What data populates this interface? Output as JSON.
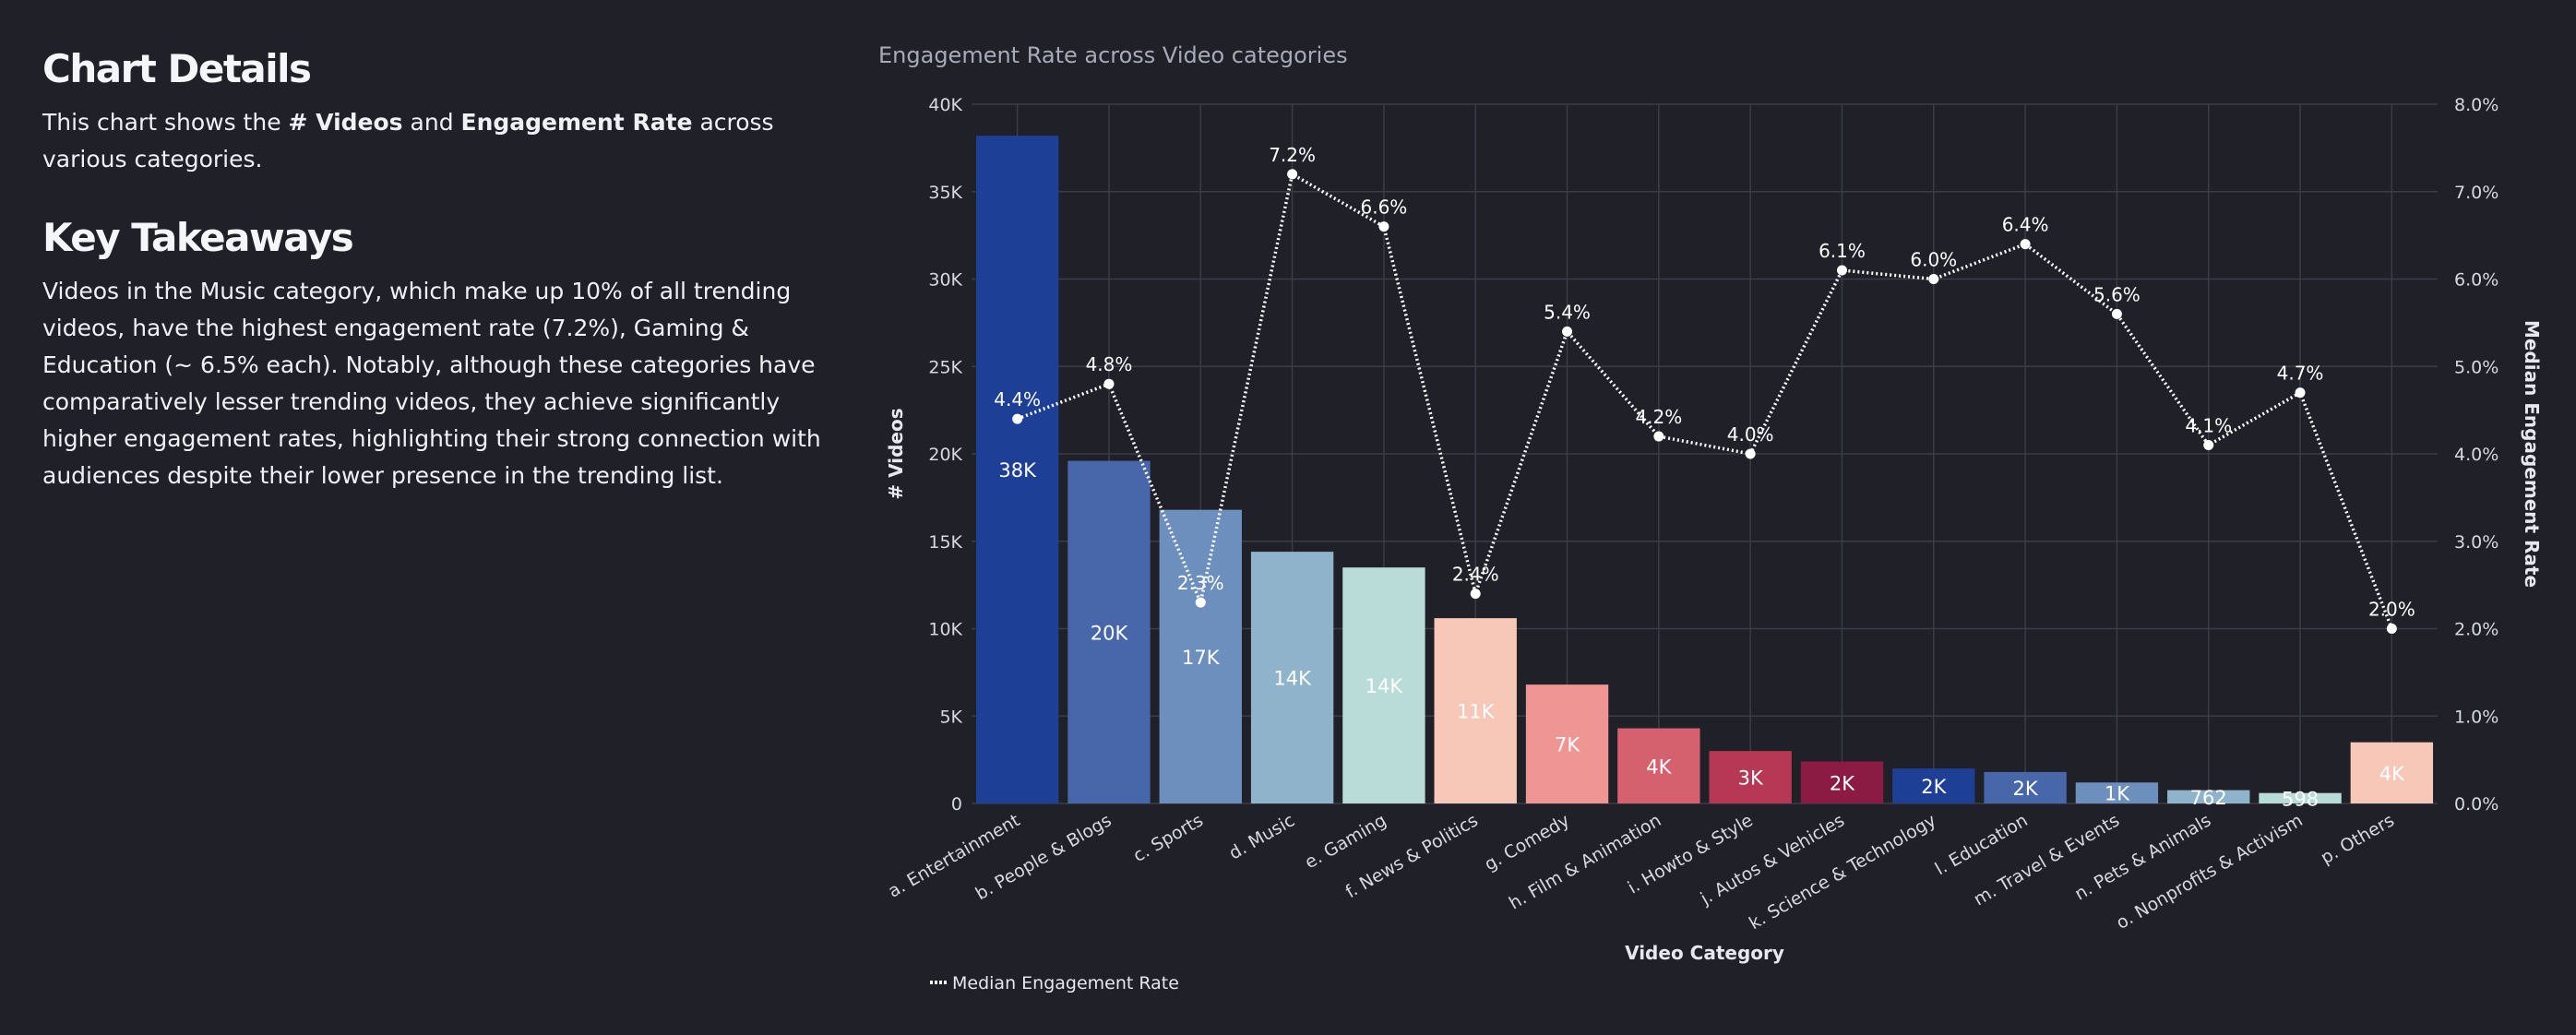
{
  "sidebar": {
    "details_heading": "Chart Details",
    "details_text_1": "This chart shows the ",
    "details_bold_1": "# Videos",
    "details_text_2": " and ",
    "details_bold_2": "Engagement Rate",
    "details_text_3": " across various categories.",
    "takeaways_heading": "Key Takeaways",
    "takeaways_text": "Videos in the Music category, which make up 10% of all trending videos, have the highest engagement rate (7.2%), Gaming & Education (~ 6.5% each). Notably, although these categories have comparatively lesser trending videos, they achieve significantly higher engagement rates, highlighting their strong connection with audiences despite their lower presence in the trending list."
  },
  "chart_data": {
    "type": "bar",
    "title": "Engagement Rate across Video categories",
    "xlabel": "Video Category",
    "ylabel": "# Videos",
    "y2label": "Median Engagement Rate",
    "ylim": [
      0,
      40000
    ],
    "y2lim": [
      0,
      0.08
    ],
    "yticks": [
      "0",
      "5K",
      "10K",
      "15K",
      "20K",
      "25K",
      "30K",
      "35K",
      "40K"
    ],
    "y2ticks": [
      "0.0%",
      "1.0%",
      "2.0%",
      "3.0%",
      "4.0%",
      "5.0%",
      "6.0%",
      "7.0%",
      "8.0%"
    ],
    "grid": true,
    "legend_position": "bottom-left",
    "categories": [
      "a. Entertainment",
      "b. People & Blogs",
      "c. Sports",
      "d. Music",
      "e. Gaming",
      "f. News & Politics",
      "g. Comedy",
      "h. Film & Animation",
      "i. Howto & Style",
      "j. Autos & Vehicles",
      "k. Science & Technology",
      "l. Education",
      "m. Travel & Events",
      "n. Pets & Animals",
      "o. Nonprofits & Activism",
      "p. Others"
    ],
    "series": [
      {
        "name": "# Videos",
        "kind": "bar",
        "values": [
          38200,
          19600,
          16800,
          14400,
          13500,
          10600,
          6800,
          4300,
          3000,
          2400,
          2000,
          1800,
          1200,
          762,
          598,
          3500
        ],
        "labels": [
          "38K",
          "20K",
          "17K",
          "14K",
          "14K",
          "11K",
          "7K",
          "4K",
          "3K",
          "2K",
          "2K",
          "2K",
          "1K",
          "762",
          "598",
          "4K"
        ],
        "colors": [
          "#1d3f95",
          "#4866aa",
          "#6d8fbd",
          "#8eb3cb",
          "#b9dcd9",
          "#f7c8b8",
          "#ef9593",
          "#d6616e",
          "#b63855",
          "#8b1b42",
          "#1d3f95",
          "#4866aa",
          "#6d8fbd",
          "#8eb3cb",
          "#b9dcd9",
          "#f7c8b8"
        ]
      },
      {
        "name": "Median Engagement Rate",
        "kind": "line",
        "values": [
          0.044,
          0.048,
          0.023,
          0.072,
          0.066,
          0.024,
          0.054,
          0.042,
          0.04,
          0.061,
          0.06,
          0.064,
          0.056,
          0.041,
          0.047,
          0.02
        ],
        "labels": [
          "4.4%",
          "4.8%",
          "2.3%",
          "7.2%",
          "6.6%",
          "2.4%",
          "5.4%",
          "4.2%",
          "4.0%",
          "6.1%",
          "6.0%",
          "6.4%",
          "5.6%",
          "4.1%",
          "4.7%",
          "2.0%"
        ],
        "color": "#ffffff"
      }
    ]
  }
}
